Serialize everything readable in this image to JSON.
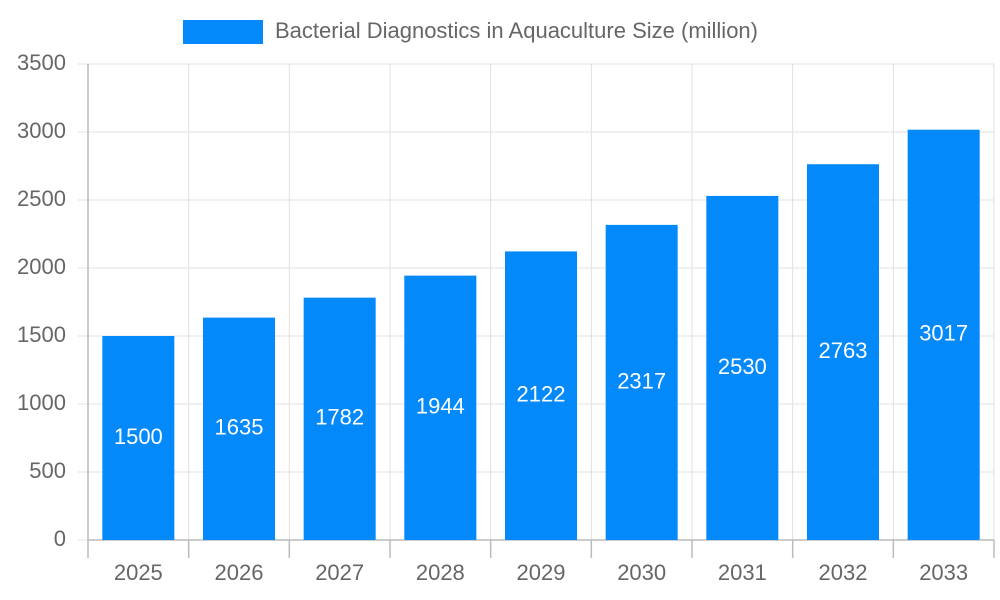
{
  "chart_data": {
    "type": "bar",
    "categories": [
      "2025",
      "2026",
      "2027",
      "2028",
      "2029",
      "2030",
      "2031",
      "2032",
      "2033"
    ],
    "series": [
      {
        "name": "Bacterial Diagnostics in Aquaculture Size (million)",
        "color": "#0389fa",
        "values": [
          1500,
          1635,
          1782,
          1944,
          2122,
          2317,
          2530,
          2763,
          3017
        ]
      }
    ],
    "ylim": [
      0,
      3500
    ],
    "yticks": [
      0,
      500,
      1000,
      1500,
      2000,
      2500,
      3000,
      3500
    ],
    "grid": true,
    "legend": "top"
  }
}
